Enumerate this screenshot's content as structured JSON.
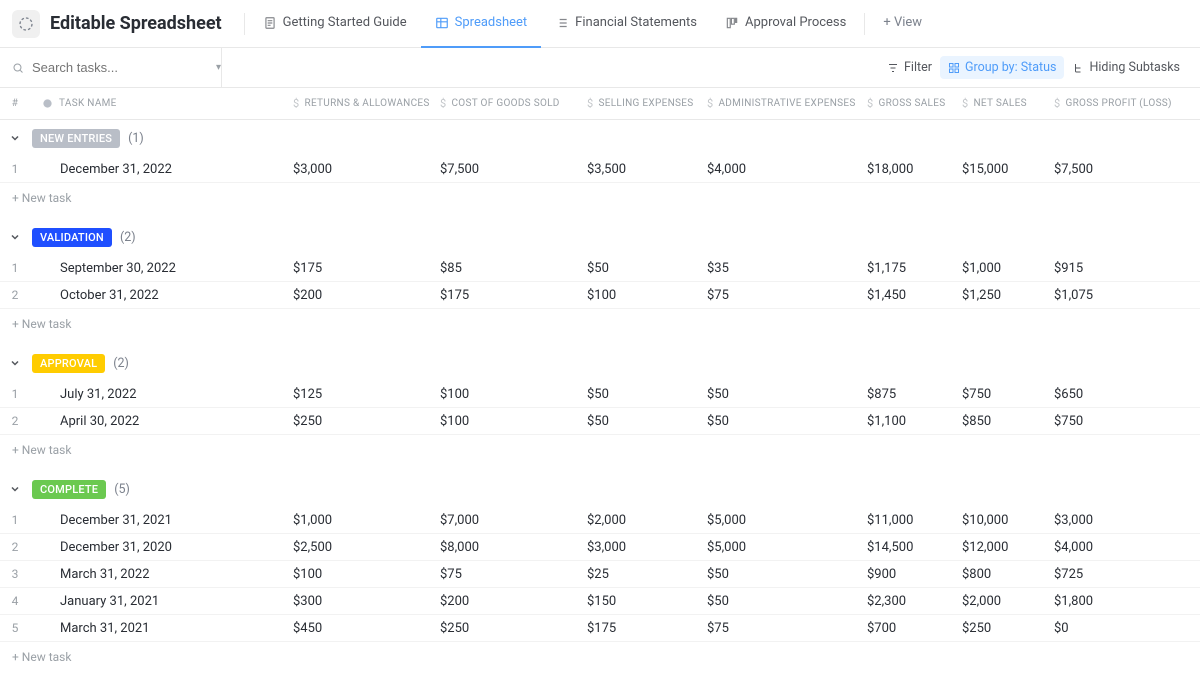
{
  "pageTitle": "Editable Spreadsheet",
  "tabs": [
    {
      "label": "Getting Started Guide",
      "active": false
    },
    {
      "label": "Spreadsheet",
      "active": true
    },
    {
      "label": "Financial Statements",
      "active": false
    },
    {
      "label": "Approval Process",
      "active": false
    }
  ],
  "addView": "+ View",
  "search": {
    "placeholder": "Search tasks..."
  },
  "subbar": {
    "filter": "Filter",
    "group": "Group by: Status",
    "hiding": "Hiding Subtasks"
  },
  "columns": {
    "hash": "#",
    "taskName": "TASK NAME",
    "c1": "RETURNS & ALLOWANCES",
    "c2": "COST OF GOODS SOLD",
    "c3": "SELLING EXPENSES",
    "c4": "ADMINISTRATIVE EXPENSES",
    "c5": "GROSS SALES",
    "c6": "NET SALES",
    "c7": "GROSS PROFIT (LOSS)"
  },
  "newTaskLabel": "+ New task",
  "groups": [
    {
      "name": "NEW ENTRIES",
      "color": "#b9bec7",
      "count": "(1)",
      "rows": [
        {
          "n": "1",
          "name": "December 31, 2022",
          "c1": "$3,000",
          "c2": "$7,500",
          "c3": "$3,500",
          "c4": "$4,000",
          "c5": "$18,000",
          "c6": "$15,000",
          "c7": "$7,500"
        }
      ]
    },
    {
      "name": "VALIDATION",
      "color": "#1f4fff",
      "count": "(2)",
      "rows": [
        {
          "n": "1",
          "name": "September 30, 2022",
          "c1": "$175",
          "c2": "$85",
          "c3": "$50",
          "c4": "$35",
          "c5": "$1,175",
          "c6": "$1,000",
          "c7": "$915"
        },
        {
          "n": "2",
          "name": "October 31, 2022",
          "c1": "$200",
          "c2": "$175",
          "c3": "$100",
          "c4": "$75",
          "c5": "$1,450",
          "c6": "$1,250",
          "c7": "$1,075"
        }
      ]
    },
    {
      "name": "APPROVAL",
      "color": "#ffcc00",
      "count": "(2)",
      "rows": [
        {
          "n": "1",
          "name": "July 31, 2022",
          "c1": "$125",
          "c2": "$100",
          "c3": "$50",
          "c4": "$50",
          "c5": "$875",
          "c6": "$750",
          "c7": "$650"
        },
        {
          "n": "2",
          "name": "April 30, 2022",
          "c1": "$250",
          "c2": "$100",
          "c3": "$50",
          "c4": "$50",
          "c5": "$1,100",
          "c6": "$850",
          "c7": "$750"
        }
      ]
    },
    {
      "name": "COMPLETE",
      "color": "#6bc950",
      "count": "(5)",
      "rows": [
        {
          "n": "1",
          "name": "December 31, 2021",
          "c1": "$1,000",
          "c2": "$7,000",
          "c3": "$2,000",
          "c4": "$5,000",
          "c5": "$11,000",
          "c6": "$10,000",
          "c7": "$3,000"
        },
        {
          "n": "2",
          "name": "December 31, 2020",
          "c1": "$2,500",
          "c2": "$8,000",
          "c3": "$3,000",
          "c4": "$5,000",
          "c5": "$14,500",
          "c6": "$12,000",
          "c7": "$4,000"
        },
        {
          "n": "3",
          "name": "March 31, 2022",
          "c1": "$100",
          "c2": "$75",
          "c3": "$25",
          "c4": "$50",
          "c5": "$900",
          "c6": "$800",
          "c7": "$725"
        },
        {
          "n": "4",
          "name": "January 31, 2021",
          "c1": "$300",
          "c2": "$200",
          "c3": "$150",
          "c4": "$50",
          "c5": "$2,300",
          "c6": "$2,000",
          "c7": "$1,800"
        },
        {
          "n": "5",
          "name": "March 31, 2021",
          "c1": "$450",
          "c2": "$250",
          "c3": "$175",
          "c4": "$75",
          "c5": "$700",
          "c6": "$250",
          "c7": "$0"
        }
      ]
    }
  ]
}
